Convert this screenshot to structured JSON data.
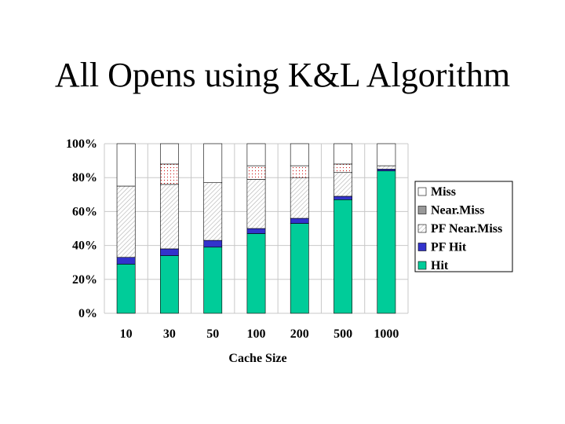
{
  "title": "All Opens using K&L Algorithm",
  "chart_data": {
    "type": "bar",
    "stacked": true,
    "percent_axis": true,
    "xlabel": "Cache Size",
    "categories": [
      "10",
      "30",
      "50",
      "100",
      "200",
      "500",
      "1000"
    ],
    "y_ticks": [
      "0%",
      "20%",
      "40%",
      "60%",
      "80%",
      "100%"
    ],
    "ylim": [
      0,
      100
    ],
    "series": [
      {
        "name": "Hit",
        "color": "#00cc99",
        "pattern": "solid",
        "values": [
          29,
          34,
          39,
          47,
          53,
          67,
          84
        ]
      },
      {
        "name": "PF Hit",
        "color": "#3333cc",
        "pattern": "solid",
        "values": [
          4,
          4,
          4,
          3,
          3,
          2,
          1
        ]
      },
      {
        "name": "PF Near.Miss",
        "color": "#999999",
        "pattern": "hatch",
        "values": [
          42,
          38,
          34,
          29,
          24,
          14,
          2
        ]
      },
      {
        "name": "Near.Miss",
        "color": "#cc0000",
        "pattern": "dots",
        "values": [
          0,
          12,
          0,
          8,
          7,
          5,
          0
        ]
      },
      {
        "name": "Miss",
        "color": "#ffffff",
        "pattern": "solid",
        "values": [
          25,
          12,
          23,
          13,
          13,
          12,
          13
        ]
      }
    ],
    "legend_order": [
      "Miss",
      "Near.Miss",
      "PF Near.Miss",
      "PF Hit",
      "Hit"
    ],
    "legend_position": "right",
    "grid": true
  }
}
